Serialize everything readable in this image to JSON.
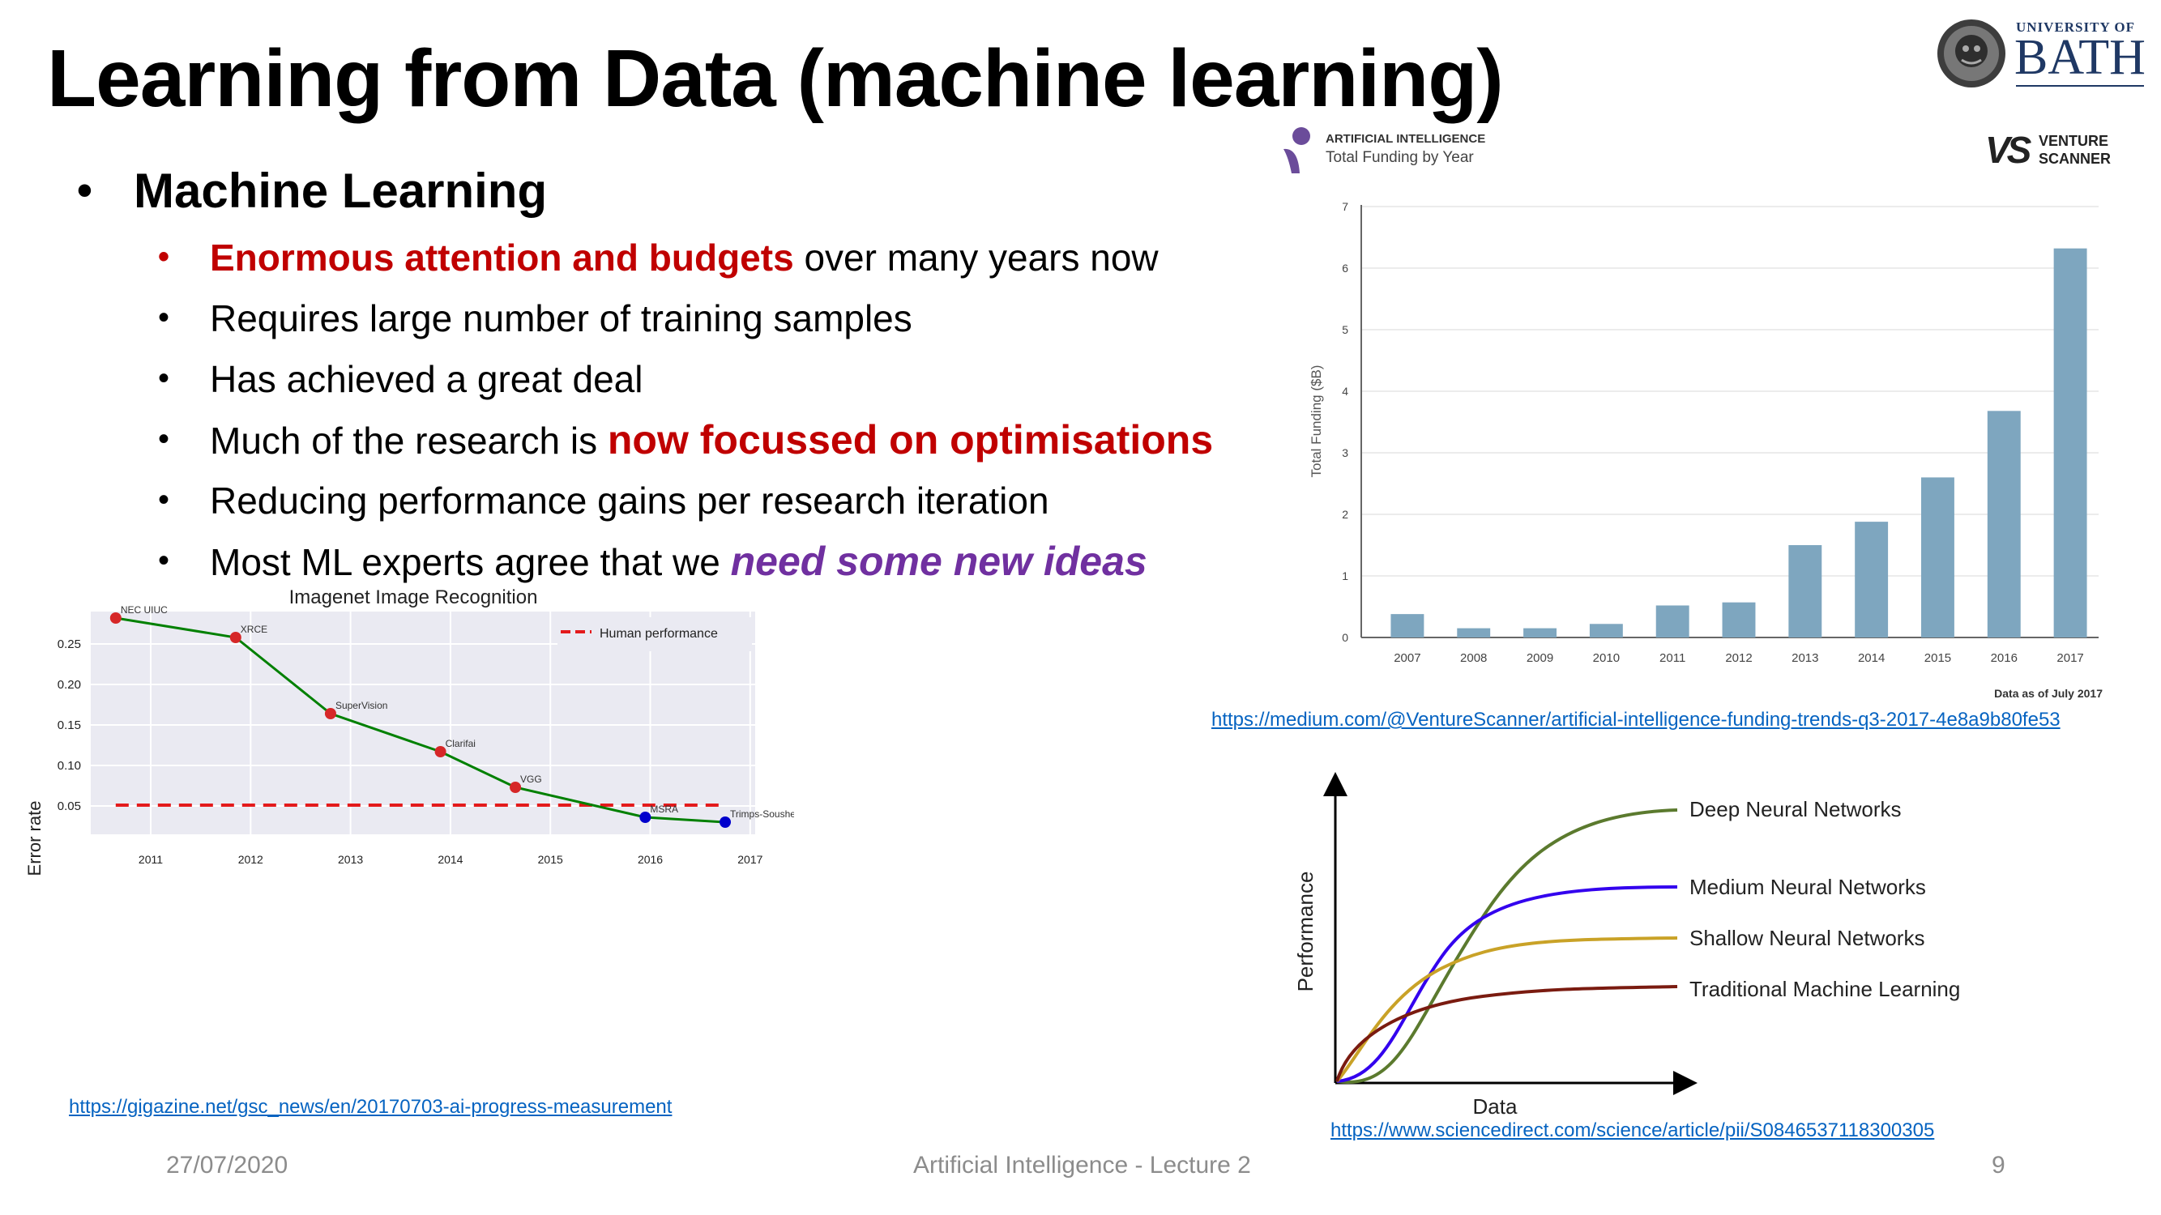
{
  "slide": {
    "title": "Learning from Data (machine learning)",
    "bullets": {
      "main": "Machine Learning",
      "items": [
        {
          "hl": "Enormous attention and budgets",
          "text": " over many years now"
        },
        {
          "text": "Requires large number of training samples"
        },
        {
          "text": "Has achieved a great deal"
        },
        {
          "pre": "Much of the research is ",
          "hl": "now focussed on optimisations"
        },
        {
          "text": "Reducing performance gains per research iteration"
        },
        {
          "pre": "Most ML experts agree that we ",
          "hl": "need some new ideas"
        }
      ]
    },
    "footer": {
      "date": "27/07/2020",
      "center": "Artificial Intelligence - Lecture 2",
      "page": "9"
    }
  },
  "logo": {
    "line1": "UNIVERSITY OF",
    "line2": "BATH"
  },
  "imagenet": {
    "link": "https://gigazine.net/gsc_news/en/20170703-ai-progress-measurement",
    "colors": {
      "bg": "#eaeaf2",
      "line": "#008000",
      "red": "#d62728",
      "blue": "#0000cc"
    },
    "chart_data": {
      "type": "line",
      "title": "Imagenet Image Recognition",
      "xlabel": "",
      "ylabel": "Error rate",
      "xlim": [
        2010.4,
        2017.05
      ],
      "ylim": [
        0.015,
        0.29
      ],
      "xticks": [
        "2011",
        "2012",
        "2013",
        "2014",
        "2015",
        "2016",
        "2017"
      ],
      "yticks": [
        "0.05",
        "0.10",
        "0.15",
        "0.20",
        "0.25"
      ],
      "legend": "Human performance",
      "human_performance": 0.051,
      "points": [
        {
          "label": "NEC UIUC",
          "x": 2010.65,
          "y": 0.282,
          "color": "red"
        },
        {
          "label": "XRCE",
          "x": 2011.85,
          "y": 0.258,
          "color": "red"
        },
        {
          "label": "SuperVision",
          "x": 2012.8,
          "y": 0.164,
          "color": "red"
        },
        {
          "label": "Clarifai",
          "x": 2013.9,
          "y": 0.117,
          "color": "red"
        },
        {
          "label": "VGG",
          "x": 2014.65,
          "y": 0.073,
          "color": "red"
        },
        {
          "label": "MSRA",
          "x": 2015.95,
          "y": 0.036,
          "color": "blue"
        },
        {
          "label": "Trimps-Soushen",
          "x": 2016.75,
          "y": 0.03,
          "color": "blue"
        }
      ]
    }
  },
  "funding": {
    "brand_line1": "ARTIFICIAL INTELLIGENCE",
    "brand_line2": "Total Funding by Year",
    "vs_brand_line1": "VENTURE",
    "vs_brand_line2": "SCANNER",
    "vs_mark": "VS",
    "note": "Data as of July 2017",
    "link": "https://medium.com/@VentureScanner/artificial-intelligence-funding-trends-q3-2017-4e8a9b80fe53",
    "colors": {
      "bar": "#7ea6bf",
      "logo": "#6b4c9a"
    },
    "chart_data": {
      "type": "bar",
      "categories": [
        "2007",
        "2008",
        "2009",
        "2010",
        "2011",
        "2012",
        "2013",
        "2014",
        "2015",
        "2016",
        "2017"
      ],
      "values": [
        0.38,
        0.15,
        0.15,
        0.22,
        0.52,
        0.57,
        1.5,
        1.88,
        2.6,
        3.68,
        6.32
      ],
      "ylabel": "Total Funding ($B)",
      "ylim": [
        0,
        7
      ],
      "yticks": [
        "0",
        "1",
        "2",
        "3",
        "4",
        "5",
        "6",
        "7"
      ]
    }
  },
  "performance": {
    "link": "https://www.sciencedirect.com/science/article/pii/S0846537118300305",
    "chart_data": {
      "type": "line",
      "xlabel": "Data",
      "ylabel": "Performance",
      "series": [
        {
          "name": "Deep Neural Networks",
          "color": "#5b7a2e"
        },
        {
          "name": "Medium Neural Networks",
          "color": "#3300ee"
        },
        {
          "name": "Shallow Neural Networks",
          "color": "#c9a227"
        },
        {
          "name": "Traditional Machine Learning",
          "color": "#7a1b10"
        }
      ]
    }
  }
}
